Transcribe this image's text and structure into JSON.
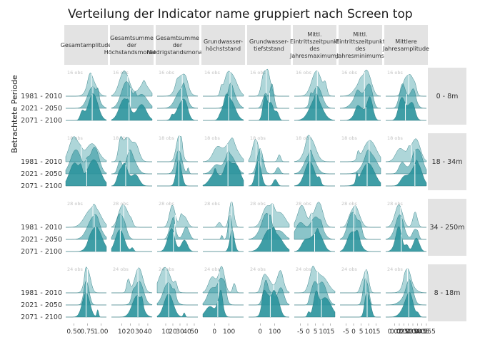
{
  "title": "Verteilung der Indicator name gruppiert nach Screen top",
  "colors": {
    "ridge_fill": "#2a939c",
    "ridge_line": "#1c6f77",
    "median_line": "#ffffff",
    "strip_bg": "#e3e3e3",
    "baseline": "#dcdcdc",
    "obs_text": "#c4c4c4"
  },
  "chart_data": {
    "type": "ridgeline",
    "title": "Verteilung der Indicator name gruppiert nach Screen top",
    "ylabel": "Betrachtete Periode",
    "periods": [
      "1981 - 2010",
      "2021 - 2050",
      "2071 - 2100"
    ],
    "period_alpha": [
      0.38,
      0.55,
      0.9
    ],
    "columns": [
      {
        "label_lines": [
          "Gesamtamplitude"
        ],
        "xlim": [
          0.35,
          1.1
        ],
        "ticks": [
          0.5,
          0.75,
          1.0
        ],
        "tick_labels": [
          "0.50",
          "0.75",
          "1.00"
        ]
      },
      {
        "label_lines": [
          "Gesamtsumme",
          "der",
          "Höchstandsmonate"
        ],
        "xlim": [
          -2,
          45
        ],
        "ticks": [
          10,
          20,
          30,
          40
        ],
        "tick_labels": [
          "10",
          "20",
          "30",
          "40"
        ]
      },
      {
        "label_lines": [
          "Gesamtsumme",
          "der",
          "Niedrigstandsmonate"
        ],
        "xlim": [
          -2,
          55
        ],
        "ticks": [
          10,
          20,
          30,
          40,
          50
        ],
        "tick_labels": [
          "10",
          "20",
          "30",
          "40",
          "50"
        ]
      },
      {
        "label_lines": [
          "Grundwasser-",
          "höchststand"
        ],
        "xlim": [
          -80,
          200
        ],
        "ticks": [
          0,
          100
        ],
        "tick_labels": [
          "0",
          "100"
        ]
      },
      {
        "label_lines": [
          "Grundwasser-",
          "tiefststand"
        ],
        "xlim": [
          -80,
          200
        ],
        "ticks": [
          0,
          100
        ],
        "tick_labels": [
          "0",
          "100"
        ]
      },
      {
        "label_lines": [
          "Mittl.",
          "Eintrittszeitpunkt",
          "des",
          "Jahresmaximums"
        ],
        "xlim": [
          -9,
          18
        ],
        "ticks": [
          -5,
          0,
          5,
          10,
          15
        ],
        "tick_labels": [
          "-5",
          "0",
          "5",
          "10",
          "15"
        ]
      },
      {
        "label_lines": [
          "Mittl.",
          "Eintrittszeitpunkt",
          "des",
          "Jahresminimums"
        ],
        "xlim": [
          -9,
          18
        ],
        "ticks": [
          -5,
          0,
          5,
          10,
          15
        ],
        "tick_labels": [
          "-5",
          "0",
          "5",
          "10",
          "15"
        ]
      },
      {
        "label_lines": [
          "Mittlere",
          "Jahresamplitude"
        ],
        "xlim": [
          0.01,
          0.055
        ],
        "ticks": [
          0.02,
          0.025,
          0.03,
          0.035,
          0.04,
          0.045,
          0.05,
          0.055
        ],
        "tick_labels": [
          "0.02",
          "0.025",
          "0.03",
          "0.035",
          "0.04",
          "0.045",
          "0.05",
          "0.055"
        ]
      }
    ],
    "rows": [
      {
        "label": "0 - 8m",
        "obs": "16 obs"
      },
      {
        "label": "18 - 34m",
        "obs": "18 obs"
      },
      {
        "label": "34 - 250m",
        "obs": "28 obs"
      },
      {
        "label": "8 - 18m",
        "obs": "24 obs"
      }
    ]
  }
}
